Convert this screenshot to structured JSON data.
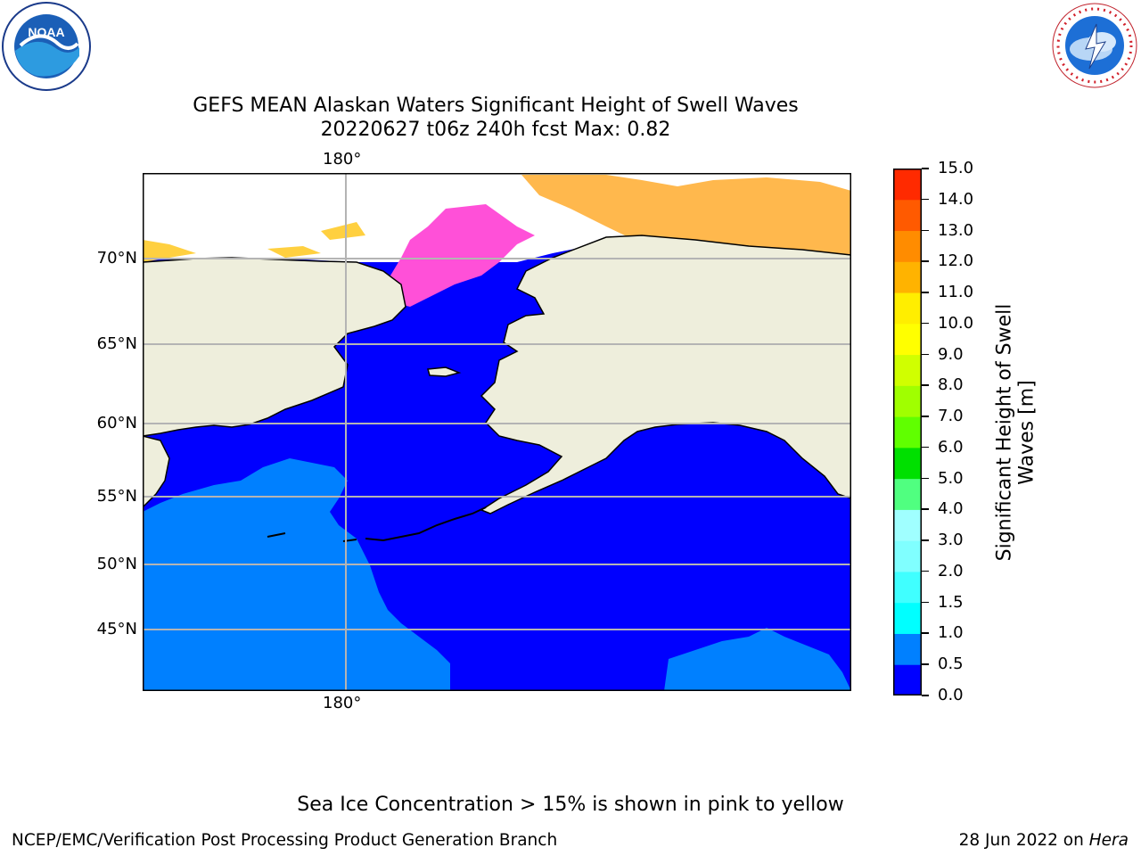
{
  "title_line1": "GEFS MEAN Alaskan Waters Significant Height of Swell Waves",
  "title_line2": "20220627 t06z 240h fcst   Max: 0.82",
  "lon_tick_top": "180°",
  "lon_tick_bottom": "180°",
  "lat_ticks": [
    "70°N",
    "65°N",
    "60°N",
    "55°N",
    "50°N",
    "45°N"
  ],
  "colorbar": {
    "title_line1": "Significant Height of Swell",
    "title_line2": "Waves [m]",
    "ticks": [
      "0.0",
      "0.5",
      "1.0",
      "1.5",
      "2.0",
      "3.0",
      "4.0",
      "5.0",
      "6.0",
      "7.0",
      "8.0",
      "9.0",
      "10.0",
      "11.0",
      "12.0",
      "13.0",
      "14.0",
      "15.0"
    ],
    "colors": [
      "#0000ff",
      "#0080ff",
      "#00ffff",
      "#40ffff",
      "#80ffff",
      "#a0ffff",
      "#50ff80",
      "#00e000",
      "#60ff00",
      "#a0ff00",
      "#d0ff00",
      "#ffff00",
      "#ffee00",
      "#ffb300",
      "#ff8c00",
      "#ff5a00",
      "#ff2a00",
      "#ff0000"
    ]
  },
  "note": "Sea Ice Concentration > 15% is shown in pink to yellow",
  "footer_left": "NCEP/EMC/Verification Post Processing Product Generation Branch",
  "footer_date": "28 Jun 2022 on",
  "footer_machine": "Hera",
  "logos": {
    "noaa_text": "NOAA",
    "nws_text": "NATIONAL WEATHER SERVICE"
  },
  "map_colors": {
    "land": "#eeeedc",
    "swell_low": "#0000ff",
    "swell_mid": "#0080ff",
    "ice_pink": "#ff50d8",
    "ice_orange": "#ffb84d",
    "ice_yellow": "#ffd040",
    "grid": "#b4b4b4"
  }
}
